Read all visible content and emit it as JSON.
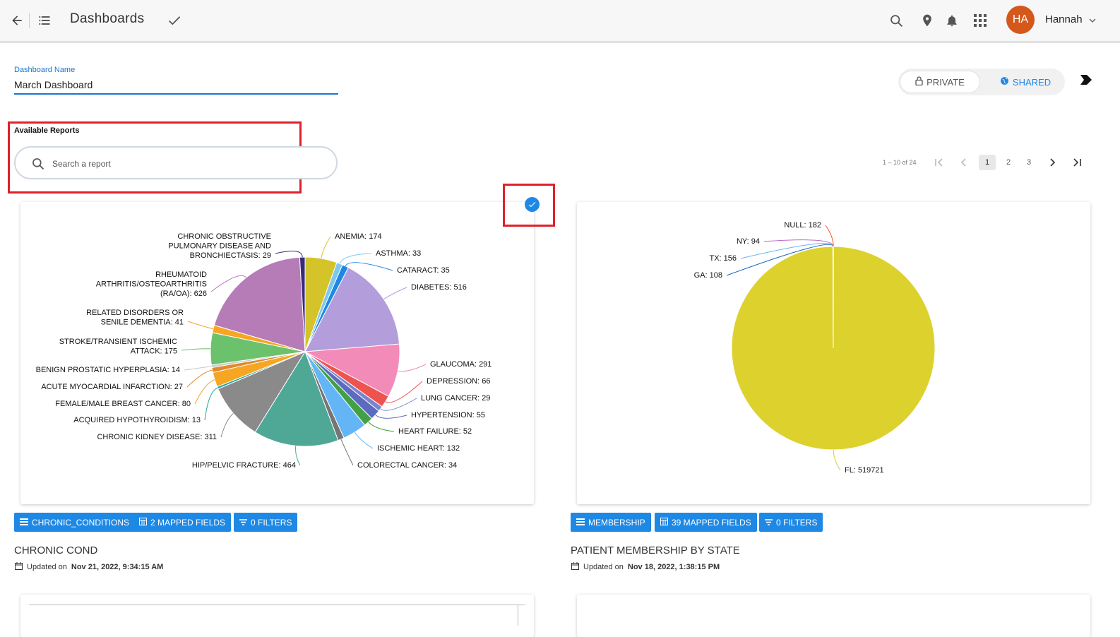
{
  "header": {
    "title": "Dashboards",
    "user_initials": "HA",
    "user_name": "Hannah"
  },
  "dashboard": {
    "name_label": "Dashboard Name",
    "name_value": "March Dashboard",
    "visibility": {
      "private_label": "PRIVATE",
      "shared_label": "SHARED"
    }
  },
  "reports": {
    "section_label": "Available Reports",
    "search_placeholder": "Search a report",
    "pager": {
      "range": "1 – 10 of 24",
      "pages": [
        "1",
        "2",
        "3"
      ],
      "current": "1"
    }
  },
  "cards": [
    {
      "title": "CHRONIC COND",
      "updated_prefix": "Updated on",
      "updated_date": "Nov 21, 2022, 9:34:15 AM",
      "tags": [
        "CHRONIC_CONDITIONS",
        "2 MAPPED FIELDS",
        "0 FILTERS"
      ],
      "selected": true,
      "chart_data": {
        "type": "pie",
        "labels": [
          [
            "ANEMIA: 174"
          ],
          [
            "ASTHMA: 33"
          ],
          [
            "CATARACT: 35"
          ],
          [
            "DIABETES: 516"
          ],
          [
            "GLAUCOMA: 291"
          ],
          [
            "DEPRESSION: 66"
          ],
          [
            "LUNG CANCER: 29"
          ],
          [
            "HYPERTENSION: 55"
          ],
          [
            "HEART FAILURE: 52"
          ],
          [
            "ISCHEMIC HEART: 132"
          ],
          [
            "COLORECTAL CANCER: 34"
          ],
          [
            "HIP/PELVIC FRACTURE: 464"
          ],
          [
            "CHRONIC KIDNEY DISEASE: 311"
          ],
          [
            "ACQUIRED HYPOTHYROIDISM: 13"
          ],
          [
            "FEMALE/MALE BREAST CANCER: 80"
          ],
          [
            "ACUTE MYOCARDIAL INFARCTION: 27"
          ],
          [
            "BENIGN PROSTATIC HYPERPLASIA: 14"
          ],
          [
            "STROKE/TRANSIENT ISCHEMIC",
            "ATTACK: 175"
          ],
          [
            "RELATED DISORDERS OR",
            "SENILE DEMENTIA: 41"
          ],
          [
            "RHEUMATOID",
            "ARTHRITIS/OSTEOARTHRITIS",
            "(RA/OA): 626"
          ],
          [
            "CHRONIC OBSTRUCTIVE",
            "PULMONARY DISEASE AND",
            "BRONCHIECTASIS: 29"
          ]
        ],
        "values": [
          174,
          33,
          35,
          516,
          291,
          66,
          29,
          55,
          52,
          132,
          34,
          464,
          311,
          13,
          80,
          27,
          14,
          175,
          41,
          626,
          29
        ],
        "colors": [
          "#d4c42a",
          "#7ec8f0",
          "#1e88e5",
          "#b39ddb",
          "#f28bb8",
          "#ef5350",
          "#7986cb",
          "#5c6bc0",
          "#43a047",
          "#64b5f6",
          "#757575",
          "#4fa896",
          "#8a8a8a",
          "#26a69a",
          "#f6a623",
          "#e08a2c",
          "#c9c9c9",
          "#6cc26c",
          "#f6a623",
          "#b57cb8",
          "#3a2a7a"
        ]
      }
    },
    {
      "title": "PATIENT MEMBERSHIP BY STATE",
      "updated_prefix": "Updated on",
      "updated_date": "Nov 18, 2022, 1:38:15 PM",
      "tags": [
        "MEMBERSHIP",
        "39 MAPPED FIELDS",
        "0 FILTERS"
      ],
      "selected": false,
      "chart_data": {
        "type": "pie",
        "labels": [
          [
            "NULL: 182"
          ],
          [
            "FL: 519721"
          ],
          [
            "GA: 108"
          ],
          [
            "TX: 156"
          ],
          [
            "NY: 94"
          ]
        ],
        "values": [
          182,
          519721,
          108,
          156,
          94
        ],
        "colors": [
          "#f4511e",
          "#ddd12e",
          "#1565c0",
          "#64b5f6",
          "#ba68c8"
        ]
      }
    }
  ]
}
